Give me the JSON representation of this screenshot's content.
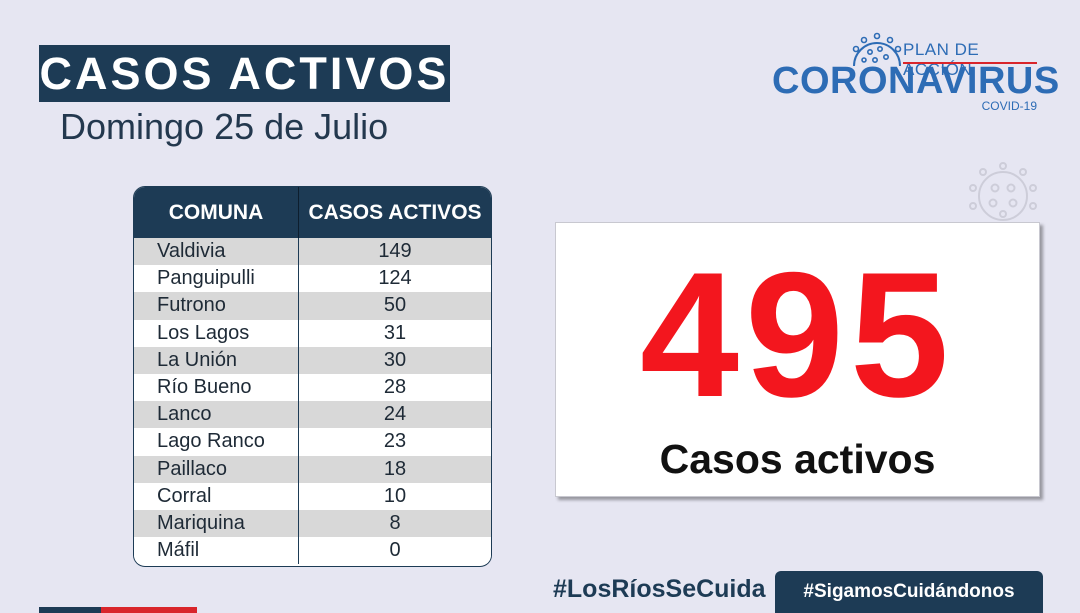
{
  "header": {
    "title": "CASOS ACTIVOS",
    "date": "Domingo 25 de Julio"
  },
  "logo": {
    "plan": "PLAN DE ACCIÓN",
    "name": "CORONAVIRUS",
    "sub": "COVID-19",
    "icon": "virus-icon"
  },
  "table": {
    "headers": [
      "COMUNA",
      "CASOS ACTIVOS"
    ],
    "rows": [
      {
        "comuna": "Valdivia",
        "casos": "149"
      },
      {
        "comuna": "Panguipulli",
        "casos": "124"
      },
      {
        "comuna": "Futrono",
        "casos": "50"
      },
      {
        "comuna": "Los Lagos",
        "casos": "31"
      },
      {
        "comuna": "La Unión",
        "casos": "30"
      },
      {
        "comuna": "Río Bueno",
        "casos": "28"
      },
      {
        "comuna": "Lanco",
        "casos": "24"
      },
      {
        "comuna": "Lago Ranco",
        "casos": "23"
      },
      {
        "comuna": "Paillaco",
        "casos": "18"
      },
      {
        "comuna": "Corral",
        "casos": "10"
      },
      {
        "comuna": "Mariquina",
        "casos": "8"
      },
      {
        "comuna": "Máfil",
        "casos": "0"
      }
    ]
  },
  "total": {
    "number": "495",
    "label": "Casos activos"
  },
  "footer": {
    "hashtag1": "#LosRíosSeCuida",
    "hashtag2": "#SigamosCuidándonos"
  },
  "colors": {
    "navy": "#1d3b55",
    "red": "#f3161e",
    "blue": "#2d6cb5",
    "background": "#e6e6f2"
  }
}
